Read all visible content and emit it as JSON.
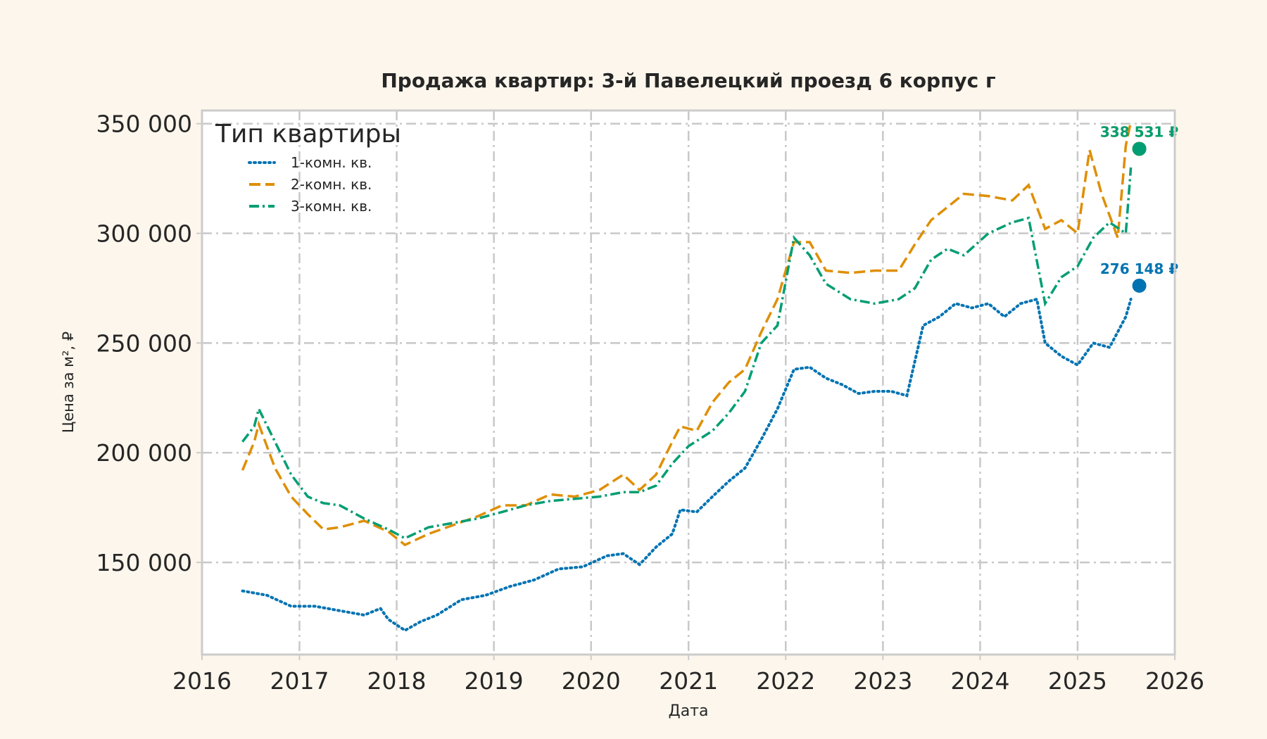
{
  "chart_data": {
    "type": "line",
    "title": "Продажа квартир: 3-й Павелецкий проезд 6 корпус г",
    "xlabel": "Дата",
    "ylabel": "Цена за м², ₽",
    "xlim": [
      "2016-01-01",
      "2026-01-01"
    ],
    "ylim": [
      108000,
      356000
    ],
    "x_ticks": [
      "2016",
      "2017",
      "2018",
      "2019",
      "2020",
      "2021",
      "2022",
      "2023",
      "2024",
      "2025",
      "2026"
    ],
    "y_ticks": [
      150000,
      200000,
      250000,
      300000,
      350000
    ],
    "y_tick_labels": [
      "150 000",
      "200 000",
      "250 000",
      "300 000",
      "350 000"
    ],
    "grid": true,
    "legend": {
      "title": "Тип квартиры",
      "placement": "top-left"
    },
    "series": [
      {
        "name": "1-комн. кв.",
        "color": "#0173b2",
        "dash": "dotted",
        "points": [
          [
            "2016-06-01",
            137000
          ],
          [
            "2016-09-01",
            135000
          ],
          [
            "2016-12-01",
            130000
          ],
          [
            "2017-03-01",
            130000
          ],
          [
            "2017-06-01",
            128000
          ],
          [
            "2017-09-01",
            126000
          ],
          [
            "2017-11-01",
            129000
          ],
          [
            "2017-12-01",
            124000
          ],
          [
            "2018-02-01",
            119000
          ],
          [
            "2018-04-01",
            123000
          ],
          [
            "2018-06-01",
            126000
          ],
          [
            "2018-09-01",
            133000
          ],
          [
            "2018-12-01",
            135000
          ],
          [
            "2019-03-01",
            139000
          ],
          [
            "2019-06-01",
            142000
          ],
          [
            "2019-09-01",
            147000
          ],
          [
            "2019-12-01",
            148000
          ],
          [
            "2020-03-01",
            153000
          ],
          [
            "2020-05-01",
            154000
          ],
          [
            "2020-07-01",
            149000
          ],
          [
            "2020-09-01",
            157000
          ],
          [
            "2020-11-01",
            163000
          ],
          [
            "2020-12-01",
            174000
          ],
          [
            "2021-02-01",
            173000
          ],
          [
            "2021-04-01",
            180000
          ],
          [
            "2021-06-01",
            187000
          ],
          [
            "2021-08-01",
            193000
          ],
          [
            "2021-10-01",
            206000
          ],
          [
            "2021-12-01",
            220000
          ],
          [
            "2022-02-01",
            238000
          ],
          [
            "2022-04-01",
            239000
          ],
          [
            "2022-06-01",
            234000
          ],
          [
            "2022-08-01",
            231000
          ],
          [
            "2022-10-01",
            227000
          ],
          [
            "2022-12-01",
            228000
          ],
          [
            "2023-02-01",
            228000
          ],
          [
            "2023-04-01",
            226000
          ],
          [
            "2023-06-01",
            258000
          ],
          [
            "2023-08-01",
            262000
          ],
          [
            "2023-10-01",
            268000
          ],
          [
            "2023-12-01",
            266000
          ],
          [
            "2024-02-01",
            268000
          ],
          [
            "2024-04-01",
            262000
          ],
          [
            "2024-06-01",
            268000
          ],
          [
            "2024-08-01",
            270000
          ],
          [
            "2024-09-01",
            250000
          ],
          [
            "2024-11-01",
            244000
          ],
          [
            "2025-01-01",
            240000
          ],
          [
            "2025-03-01",
            250000
          ],
          [
            "2025-05-01",
            248000
          ],
          [
            "2025-07-01",
            262000
          ],
          [
            "2025-07-20",
            270000
          ]
        ],
        "last_value": 276148,
        "last_label": "276 148 ₽"
      },
      {
        "name": "2-комн. кв.",
        "color": "#de8f05",
        "dash": "dashed",
        "points": [
          [
            "2016-06-01",
            192000
          ],
          [
            "2016-07-15",
            205000
          ],
          [
            "2016-08-01",
            213000
          ],
          [
            "2016-10-01",
            193000
          ],
          [
            "2016-12-01",
            180000
          ],
          [
            "2017-02-01",
            172000
          ],
          [
            "2017-04-01",
            165000
          ],
          [
            "2017-06-01",
            166000
          ],
          [
            "2017-09-01",
            169000
          ],
          [
            "2017-12-01",
            164000
          ],
          [
            "2018-02-01",
            158000
          ],
          [
            "2018-05-01",
            163000
          ],
          [
            "2018-08-01",
            167000
          ],
          [
            "2018-11-01",
            171000
          ],
          [
            "2019-02-01",
            176000
          ],
          [
            "2019-05-01",
            176000
          ],
          [
            "2019-08-01",
            181000
          ],
          [
            "2019-11-01",
            180000
          ],
          [
            "2020-02-01",
            183000
          ],
          [
            "2020-05-01",
            190000
          ],
          [
            "2020-07-01",
            183000
          ],
          [
            "2020-09-01",
            190000
          ],
          [
            "2020-11-01",
            205000
          ],
          [
            "2020-12-01",
            212000
          ],
          [
            "2021-02-01",
            210000
          ],
          [
            "2021-04-01",
            223000
          ],
          [
            "2021-06-01",
            232000
          ],
          [
            "2021-08-01",
            238000
          ],
          [
            "2021-10-01",
            255000
          ],
          [
            "2021-12-01",
            270000
          ],
          [
            "2022-02-01",
            296000
          ],
          [
            "2022-04-01",
            296000
          ],
          [
            "2022-06-01",
            283000
          ],
          [
            "2022-09-01",
            282000
          ],
          [
            "2022-12-01",
            283000
          ],
          [
            "2023-03-01",
            283000
          ],
          [
            "2023-05-01",
            295000
          ],
          [
            "2023-07-01",
            306000
          ],
          [
            "2023-09-01",
            312000
          ],
          [
            "2023-11-01",
            318000
          ],
          [
            "2024-02-01",
            317000
          ],
          [
            "2024-05-01",
            315000
          ],
          [
            "2024-07-01",
            322000
          ],
          [
            "2024-09-01",
            302000
          ],
          [
            "2024-11-01",
            306000
          ],
          [
            "2025-01-01",
            300000
          ],
          [
            "2025-02-15",
            338000
          ],
          [
            "2025-04-01",
            318000
          ],
          [
            "2025-06-01",
            298000
          ],
          [
            "2025-07-01",
            340000
          ],
          [
            "2025-07-20",
            351000
          ]
        ],
        "last_value": 338531,
        "last_label": "338 531 ₽"
      },
      {
        "name": "3-комн. кв.",
        "color": "#029e73",
        "dash": "dashdot",
        "points": [
          [
            "2016-06-01",
            205000
          ],
          [
            "2016-07-15",
            212000
          ],
          [
            "2016-08-01",
            220000
          ],
          [
            "2016-10-01",
            205000
          ],
          [
            "2016-12-01",
            190000
          ],
          [
            "2017-02-01",
            180000
          ],
          [
            "2017-04-01",
            177000
          ],
          [
            "2017-06-01",
            176000
          ],
          [
            "2017-09-01",
            170000
          ],
          [
            "2017-12-01",
            165000
          ],
          [
            "2018-02-01",
            161000
          ],
          [
            "2018-05-01",
            166000
          ],
          [
            "2018-08-01",
            168000
          ],
          [
            "2018-11-01",
            170000
          ],
          [
            "2019-02-01",
            173000
          ],
          [
            "2019-05-01",
            176000
          ],
          [
            "2019-08-01",
            178000
          ],
          [
            "2019-11-01",
            179000
          ],
          [
            "2020-02-01",
            180000
          ],
          [
            "2020-05-01",
            182000
          ],
          [
            "2020-07-01",
            182000
          ],
          [
            "2020-09-01",
            185000
          ],
          [
            "2020-11-01",
            195000
          ],
          [
            "2021-01-01",
            203000
          ],
          [
            "2021-04-01",
            210000
          ],
          [
            "2021-06-01",
            218000
          ],
          [
            "2021-08-01",
            228000
          ],
          [
            "2021-10-01",
            250000
          ],
          [
            "2021-12-01",
            258000
          ],
          [
            "2022-02-01",
            298000
          ],
          [
            "2022-04-01",
            290000
          ],
          [
            "2022-06-01",
            277000
          ],
          [
            "2022-09-01",
            270000
          ],
          [
            "2022-12-01",
            268000
          ],
          [
            "2023-03-01",
            270000
          ],
          [
            "2023-05-01",
            275000
          ],
          [
            "2023-07-01",
            288000
          ],
          [
            "2023-09-01",
            293000
          ],
          [
            "2023-11-01",
            290000
          ],
          [
            "2024-02-01",
            300000
          ],
          [
            "2024-05-01",
            305000
          ],
          [
            "2024-07-01",
            307000
          ],
          [
            "2024-09-01",
            268000
          ],
          [
            "2024-11-01",
            280000
          ],
          [
            "2025-01-01",
            285000
          ],
          [
            "2025-03-01",
            298000
          ],
          [
            "2025-05-01",
            305000
          ],
          [
            "2025-07-01",
            300000
          ],
          [
            "2025-07-20",
            330000
          ]
        ],
        "last_value": 338531,
        "last_label": "338 531 ₽"
      }
    ]
  }
}
